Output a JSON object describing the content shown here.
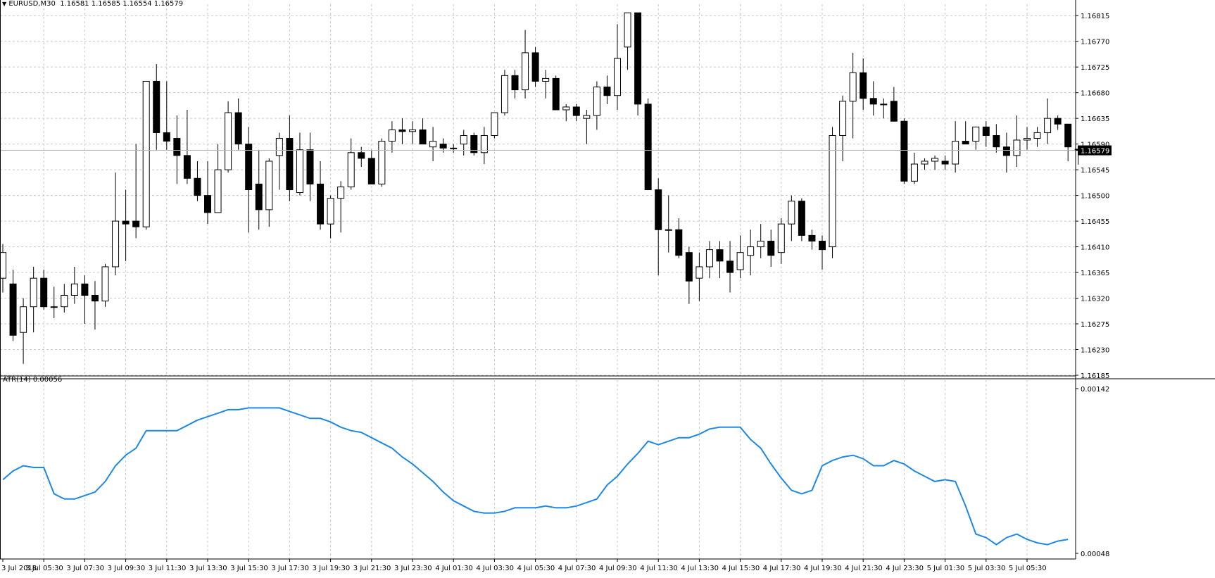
{
  "main_panel": {
    "symbol_info": "EURUSD,M30",
    "ohlc_text": "1.16581 1.16585 1.16554 1.16579",
    "current_price_label": "1.16579",
    "y_ticks": [
      "1.16815",
      "1.16770",
      "1.16725",
      "1.16680",
      "1.16635",
      "1.16590",
      "1.16545",
      "1.16500",
      "1.16455",
      "1.16410",
      "1.16365",
      "1.16320",
      "1.16275",
      "1.16230",
      "1.16185"
    ]
  },
  "atr_panel": {
    "label": "ATR(14) 0.00056",
    "y_ticks": [
      "0.00142",
      "0.00048"
    ]
  },
  "colors": {
    "bull_fill": "#ffffff",
    "bear_fill": "#000000",
    "candle_outline": "#000000",
    "atr_line": "#1e88e5",
    "grid": "#c8c8c8",
    "current_price_line": "#b4b4b4"
  },
  "x_tick_labels": [
    "3 Jul 2018",
    "3 Jul 05:30",
    "3 Jul 07:30",
    "3 Jul 09:30",
    "3 Jul 11:30",
    "3 Jul 13:30",
    "3 Jul 15:30",
    "3 Jul 17:30",
    "3 Jul 19:30",
    "3 Jul 21:30",
    "3 Jul 23:30",
    "4 Jul 01:30",
    "4 Jul 03:30",
    "4 Jul 05:30",
    "4 Jul 07:30",
    "4 Jul 09:30",
    "4 Jul 11:30",
    "4 Jul 13:30",
    "4 Jul 15:30",
    "4 Jul 17:30",
    "4 Jul 19:30",
    "4 Jul 21:30",
    "4 Jul 23:30",
    "5 Jul 01:30",
    "5 Jul 03:30",
    "5 Jul 05:30"
  ],
  "chart_data": {
    "type": "candlestick",
    "symbol": "EURUSD",
    "timeframe": "M30",
    "price_ylim": [
      1.16185,
      1.16835
    ],
    "atr_ylim": [
      0.00048,
      0.00142
    ],
    "candles": [
      {
        "o": 1.16355,
        "h": 1.16415,
        "l": 1.1633,
        "c": 1.164
      },
      {
        "o": 1.16345,
        "h": 1.1637,
        "l": 1.16245,
        "c": 1.16255
      },
      {
        "o": 1.1626,
        "h": 1.1632,
        "l": 1.16205,
        "c": 1.16305
      },
      {
        "o": 1.16305,
        "h": 1.16375,
        "l": 1.1626,
        "c": 1.16355
      },
      {
        "o": 1.16355,
        "h": 1.1637,
        "l": 1.163,
        "c": 1.16305
      },
      {
        "o": 1.16305,
        "h": 1.1634,
        "l": 1.16285,
        "c": 1.16305
      },
      {
        "o": 1.16305,
        "h": 1.16345,
        "l": 1.16295,
        "c": 1.16325
      },
      {
        "o": 1.16325,
        "h": 1.16375,
        "l": 1.1631,
        "c": 1.16345
      },
      {
        "o": 1.16345,
        "h": 1.1636,
        "l": 1.16275,
        "c": 1.16325
      },
      {
        "o": 1.16325,
        "h": 1.1635,
        "l": 1.16265,
        "c": 1.16315
      },
      {
        "o": 1.16315,
        "h": 1.1638,
        "l": 1.16305,
        "c": 1.16375
      },
      {
        "o": 1.16375,
        "h": 1.1654,
        "l": 1.1636,
        "c": 1.16455
      },
      {
        "o": 1.16455,
        "h": 1.1651,
        "l": 1.16385,
        "c": 1.1645
      },
      {
        "o": 1.16455,
        "h": 1.1659,
        "l": 1.16425,
        "c": 1.16445
      },
      {
        "o": 1.16445,
        "h": 1.167,
        "l": 1.1644,
        "c": 1.167
      },
      {
        "o": 1.167,
        "h": 1.1673,
        "l": 1.1658,
        "c": 1.1661
      },
      {
        "o": 1.1661,
        "h": 1.167,
        "l": 1.1658,
        "c": 1.16595
      },
      {
        "o": 1.166,
        "h": 1.1664,
        "l": 1.1652,
        "c": 1.1657
      },
      {
        "o": 1.1657,
        "h": 1.1665,
        "l": 1.1652,
        "c": 1.1653
      },
      {
        "o": 1.1653,
        "h": 1.1656,
        "l": 1.1649,
        "c": 1.165
      },
      {
        "o": 1.165,
        "h": 1.1656,
        "l": 1.1645,
        "c": 1.1647
      },
      {
        "o": 1.1647,
        "h": 1.1659,
        "l": 1.1647,
        "c": 1.16545
      },
      {
        "o": 1.16545,
        "h": 1.16665,
        "l": 1.1654,
        "c": 1.16645
      },
      {
        "o": 1.16645,
        "h": 1.1667,
        "l": 1.1658,
        "c": 1.1659
      },
      {
        "o": 1.1659,
        "h": 1.1662,
        "l": 1.16435,
        "c": 1.1651
      },
      {
        "o": 1.1652,
        "h": 1.1658,
        "l": 1.1644,
        "c": 1.16475
      },
      {
        "o": 1.16475,
        "h": 1.16565,
        "l": 1.16445,
        "c": 1.1656
      },
      {
        "o": 1.1657,
        "h": 1.1661,
        "l": 1.1651,
        "c": 1.166
      },
      {
        "o": 1.166,
        "h": 1.1664,
        "l": 1.1649,
        "c": 1.1651
      },
      {
        "o": 1.16505,
        "h": 1.1661,
        "l": 1.165,
        "c": 1.1658
      },
      {
        "o": 1.1658,
        "h": 1.1661,
        "l": 1.1649,
        "c": 1.1652
      },
      {
        "o": 1.1652,
        "h": 1.1656,
        "l": 1.1644,
        "c": 1.1645
      },
      {
        "o": 1.1645,
        "h": 1.165,
        "l": 1.16425,
        "c": 1.16495
      },
      {
        "o": 1.16495,
        "h": 1.16525,
        "l": 1.16435,
        "c": 1.16515
      },
      {
        "o": 1.16515,
        "h": 1.166,
        "l": 1.1651,
        "c": 1.16575
      },
      {
        "o": 1.16575,
        "h": 1.16585,
        "l": 1.1655,
        "c": 1.16565
      },
      {
        "o": 1.16565,
        "h": 1.1658,
        "l": 1.1652,
        "c": 1.1652
      },
      {
        "o": 1.1652,
        "h": 1.166,
        "l": 1.16515,
        "c": 1.16595
      },
      {
        "o": 1.16595,
        "h": 1.1663,
        "l": 1.16575,
        "c": 1.16615
      },
      {
        "o": 1.16615,
        "h": 1.16635,
        "l": 1.1659,
        "c": 1.16612
      },
      {
        "o": 1.16612,
        "h": 1.1663,
        "l": 1.1659,
        "c": 1.16615
      },
      {
        "o": 1.16615,
        "h": 1.16635,
        "l": 1.1659,
        "c": 1.1659
      },
      {
        "o": 1.16585,
        "h": 1.1662,
        "l": 1.1656,
        "c": 1.16595
      },
      {
        "o": 1.1659,
        "h": 1.166,
        "l": 1.16575,
        "c": 1.16583
      },
      {
        "o": 1.16583,
        "h": 1.1659,
        "l": 1.16575,
        "c": 1.16583
      },
      {
        "o": 1.1659,
        "h": 1.16615,
        "l": 1.1657,
        "c": 1.16605
      },
      {
        "o": 1.16605,
        "h": 1.1661,
        "l": 1.1657,
        "c": 1.16575
      },
      {
        "o": 1.16575,
        "h": 1.1662,
        "l": 1.16555,
        "c": 1.16605
      },
      {
        "o": 1.16605,
        "h": 1.1664,
        "l": 1.166,
        "c": 1.16645
      },
      {
        "o": 1.16645,
        "h": 1.1672,
        "l": 1.1664,
        "c": 1.1671
      },
      {
        "o": 1.1671,
        "h": 1.1672,
        "l": 1.1667,
        "c": 1.16685
      },
      {
        "o": 1.16685,
        "h": 1.1679,
        "l": 1.1667,
        "c": 1.1675
      },
      {
        "o": 1.1675,
        "h": 1.1676,
        "l": 1.1669,
        "c": 1.167
      },
      {
        "o": 1.167,
        "h": 1.1672,
        "l": 1.1667,
        "c": 1.16705
      },
      {
        "o": 1.16705,
        "h": 1.1671,
        "l": 1.1665,
        "c": 1.1665
      },
      {
        "o": 1.1665,
        "h": 1.1666,
        "l": 1.1663,
        "c": 1.16655
      },
      {
        "o": 1.16655,
        "h": 1.1666,
        "l": 1.1663,
        "c": 1.1664
      },
      {
        "o": 1.16635,
        "h": 1.1665,
        "l": 1.1659,
        "c": 1.1664
      },
      {
        "o": 1.1664,
        "h": 1.167,
        "l": 1.16615,
        "c": 1.1669
      },
      {
        "o": 1.1669,
        "h": 1.1671,
        "l": 1.1666,
        "c": 1.16675
      },
      {
        "o": 1.16675,
        "h": 1.168,
        "l": 1.1665,
        "c": 1.1674
      },
      {
        "o": 1.1676,
        "h": 1.1682,
        "l": 1.1672,
        "c": 1.1682
      },
      {
        "o": 1.1682,
        "h": 1.1682,
        "l": 1.1664,
        "c": 1.1666
      },
      {
        "o": 1.1666,
        "h": 1.1667,
        "l": 1.1651,
        "c": 1.1651
      },
      {
        "o": 1.1651,
        "h": 1.1653,
        "l": 1.1636,
        "c": 1.1644
      },
      {
        "o": 1.1644,
        "h": 1.165,
        "l": 1.164,
        "c": 1.1644
      },
      {
        "o": 1.1644,
        "h": 1.1646,
        "l": 1.1639,
        "c": 1.16395
      },
      {
        "o": 1.164,
        "h": 1.1641,
        "l": 1.1631,
        "c": 1.1635
      },
      {
        "o": 1.16355,
        "h": 1.164,
        "l": 1.16315,
        "c": 1.16375
      },
      {
        "o": 1.16375,
        "h": 1.1642,
        "l": 1.16355,
        "c": 1.16405
      },
      {
        "o": 1.16405,
        "h": 1.1642,
        "l": 1.16355,
        "c": 1.16385
      },
      {
        "o": 1.16385,
        "h": 1.1642,
        "l": 1.1633,
        "c": 1.16365
      },
      {
        "o": 1.1637,
        "h": 1.1643,
        "l": 1.16355,
        "c": 1.164
      },
      {
        "o": 1.16395,
        "h": 1.1644,
        "l": 1.1636,
        "c": 1.1641
      },
      {
        "o": 1.1641,
        "h": 1.1645,
        "l": 1.1639,
        "c": 1.1642
      },
      {
        "o": 1.1642,
        "h": 1.1644,
        "l": 1.16375,
        "c": 1.16395
      },
      {
        "o": 1.164,
        "h": 1.1646,
        "l": 1.1638,
        "c": 1.1645
      },
      {
        "o": 1.1645,
        "h": 1.165,
        "l": 1.1642,
        "c": 1.1649
      },
      {
        "o": 1.1649,
        "h": 1.16495,
        "l": 1.1642,
        "c": 1.1643
      },
      {
        "o": 1.1643,
        "h": 1.1644,
        "l": 1.16405,
        "c": 1.1642
      },
      {
        "o": 1.1642,
        "h": 1.1643,
        "l": 1.1637,
        "c": 1.16405
      },
      {
        "o": 1.1641,
        "h": 1.1662,
        "l": 1.1639,
        "c": 1.16605
      },
      {
        "o": 1.16605,
        "h": 1.16675,
        "l": 1.1656,
        "c": 1.16665
      },
      {
        "o": 1.16665,
        "h": 1.1675,
        "l": 1.166,
        "c": 1.16715
      },
      {
        "o": 1.16715,
        "h": 1.1674,
        "l": 1.1665,
        "c": 1.1667
      },
      {
        "o": 1.1667,
        "h": 1.167,
        "l": 1.1664,
        "c": 1.1666
      },
      {
        "o": 1.1666,
        "h": 1.1667,
        "l": 1.16635,
        "c": 1.1666
      },
      {
        "o": 1.16665,
        "h": 1.1669,
        "l": 1.1663,
        "c": 1.1663
      },
      {
        "o": 1.1663,
        "h": 1.16635,
        "l": 1.1652,
        "c": 1.16525
      },
      {
        "o": 1.16525,
        "h": 1.16575,
        "l": 1.1652,
        "c": 1.16555
      },
      {
        "o": 1.16555,
        "h": 1.16565,
        "l": 1.16545,
        "c": 1.1656
      },
      {
        "o": 1.1656,
        "h": 1.1657,
        "l": 1.16545,
        "c": 1.16565
      },
      {
        "o": 1.1656,
        "h": 1.1657,
        "l": 1.16545,
        "c": 1.16555
      },
      {
        "o": 1.16555,
        "h": 1.1663,
        "l": 1.1654,
        "c": 1.16595
      },
      {
        "o": 1.16595,
        "h": 1.1663,
        "l": 1.1659,
        "c": 1.1659
      },
      {
        "o": 1.16595,
        "h": 1.1662,
        "l": 1.1658,
        "c": 1.1662
      },
      {
        "o": 1.1662,
        "h": 1.1663,
        "l": 1.16585,
        "c": 1.16605
      },
      {
        "o": 1.16605,
        "h": 1.16625,
        "l": 1.16575,
        "c": 1.16585
      },
      {
        "o": 1.16585,
        "h": 1.1661,
        "l": 1.1654,
        "c": 1.1657
      },
      {
        "o": 1.1657,
        "h": 1.1664,
        "l": 1.1655,
        "c": 1.16597
      },
      {
        "o": 1.16597,
        "h": 1.1662,
        "l": 1.1658,
        "c": 1.166
      },
      {
        "o": 1.166,
        "h": 1.1662,
        "l": 1.16585,
        "c": 1.1661
      },
      {
        "o": 1.1661,
        "h": 1.1667,
        "l": 1.1659,
        "c": 1.16635
      },
      {
        "o": 1.16635,
        "h": 1.1664,
        "l": 1.16615,
        "c": 1.16625
      },
      {
        "o": 1.16625,
        "h": 1.16625,
        "l": 1.1656,
        "c": 1.16585
      },
      {
        "o": 1.16581,
        "h": 1.16585,
        "l": 1.16554,
        "c": 1.16579
      }
    ],
    "atr_values": [
      0.0009,
      0.00095,
      0.00098,
      0.00097,
      0.00097,
      0.00082,
      0.00079,
      0.00079,
      0.00081,
      0.00083,
      0.00089,
      0.00098,
      0.00104,
      0.00108,
      0.00118,
      0.00118,
      0.00118,
      0.00118,
      0.00121,
      0.00124,
      0.00126,
      0.00128,
      0.0013,
      0.0013,
      0.00131,
      0.00131,
      0.00131,
      0.00131,
      0.00129,
      0.00127,
      0.00125,
      0.00125,
      0.00123,
      0.0012,
      0.00118,
      0.00117,
      0.00114,
      0.00111,
      0.00108,
      0.00103,
      0.00099,
      0.00094,
      0.00089,
      0.00083,
      0.00078,
      0.00075,
      0.00072,
      0.00071,
      0.00071,
      0.00072,
      0.00074,
      0.00074,
      0.00074,
      0.00075,
      0.00074,
      0.00074,
      0.00075,
      0.00077,
      0.00079,
      0.00087,
      0.00092,
      0.00099,
      0.00105,
      0.00112,
      0.0011,
      0.00112,
      0.00114,
      0.00114,
      0.00116,
      0.00119,
      0.0012,
      0.0012,
      0.0012,
      0.00113,
      0.00108,
      0.00099,
      0.00091,
      0.00084,
      0.00082,
      0.00084,
      0.00098,
      0.00101,
      0.00103,
      0.00104,
      0.00102,
      0.00098,
      0.00098,
      0.00101,
      0.00099,
      0.00095,
      0.00092,
      0.00089,
      0.0009,
      0.00089,
      0.00075,
      0.00059,
      0.00057,
      0.00053,
      0.00057,
      0.00059,
      0.00056,
      0.00054,
      0.00053,
      0.00055,
      0.00056
    ]
  }
}
